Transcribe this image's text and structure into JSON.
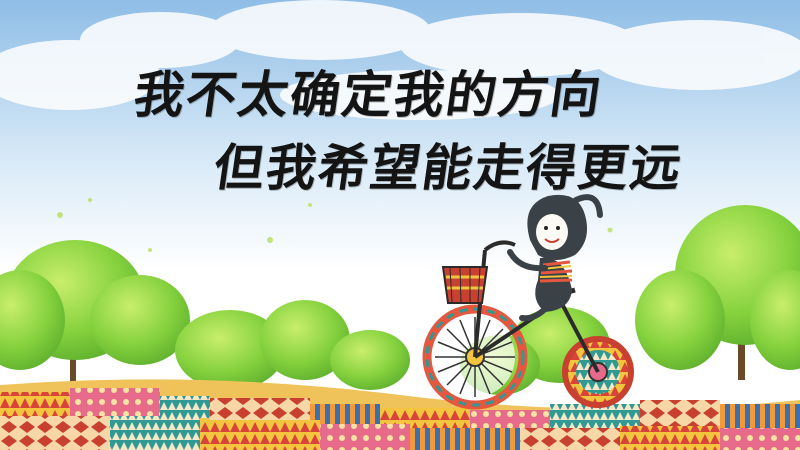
{
  "poster": {
    "line1": "我不太确定我的方向",
    "line2": "但我希望能走得更远"
  },
  "colors": {
    "sky": "#a9cdea",
    "tree_green": "#7fce3a",
    "text": "#141414",
    "patchwork_red": "#d8443a",
    "patchwork_teal": "#2f9a94",
    "patchwork_yellow": "#f3c43d"
  },
  "icons": [
    "cloud",
    "tree",
    "bicycle",
    "character",
    "basket",
    "patchwork-ground"
  ]
}
